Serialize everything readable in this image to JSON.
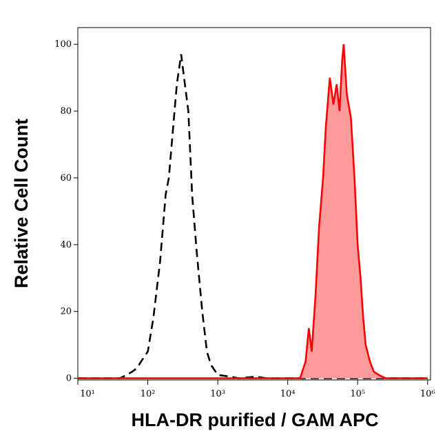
{
  "chart_data": {
    "type": "histogram-overlay",
    "x_label": "HLA-DR purified / GAM APC",
    "y_label": "Relative Cell Count",
    "xscale": "log",
    "xlim": [
      10,
      1100000
    ],
    "ylim": [
      -0.5,
      105
    ],
    "xticks": [
      {
        "value": 10,
        "label": "10¹"
      },
      {
        "value": 100,
        "label": "10²"
      },
      {
        "value": 1000,
        "label": "10³"
      },
      {
        "value": 10000,
        "label": "10⁴"
      },
      {
        "value": 100000,
        "label": "10⁵"
      },
      {
        "value": 1000000,
        "label": "10⁶"
      }
    ],
    "yticks": [
      0,
      20,
      40,
      60,
      80,
      100
    ],
    "series": [
      {
        "color": "#000000",
        "dashed": true,
        "filled": false,
        "x": [
          10,
          20,
          40,
          50,
          60,
          70,
          80,
          100,
          120,
          150,
          180,
          200,
          230,
          260,
          300,
          330,
          380,
          430,
          500,
          600,
          700,
          800,
          1000,
          1500,
          2000,
          3500,
          5000,
          1000000
        ],
        "values": [
          0,
          0,
          0,
          1,
          2,
          3,
          5,
          8,
          18,
          35,
          55,
          60,
          75,
          88,
          97,
          90,
          80,
          55,
          38,
          20,
          8,
          4,
          1,
          0.5,
          0,
          0.5,
          0,
          0
        ]
      },
      {
        "color": "#ff0000",
        "fill": "#ff9b9b",
        "dashed": false,
        "filled": true,
        "x": [
          10,
          15000,
          18000,
          20000,
          22000,
          25000,
          28000,
          32000,
          35000,
          40000,
          45000,
          50000,
          55000,
          60000,
          63000,
          70000,
          80000,
          90000,
          100000,
          110000,
          120000,
          130000,
          150000,
          170000,
          200000,
          250000,
          1000000
        ],
        "values": [
          0,
          0,
          5,
          15,
          8,
          25,
          45,
          60,
          75,
          90,
          82,
          88,
          80,
          95,
          100,
          85,
          78,
          60,
          40,
          30,
          18,
          10,
          5,
          2,
          1,
          0,
          0
        ]
      }
    ]
  }
}
